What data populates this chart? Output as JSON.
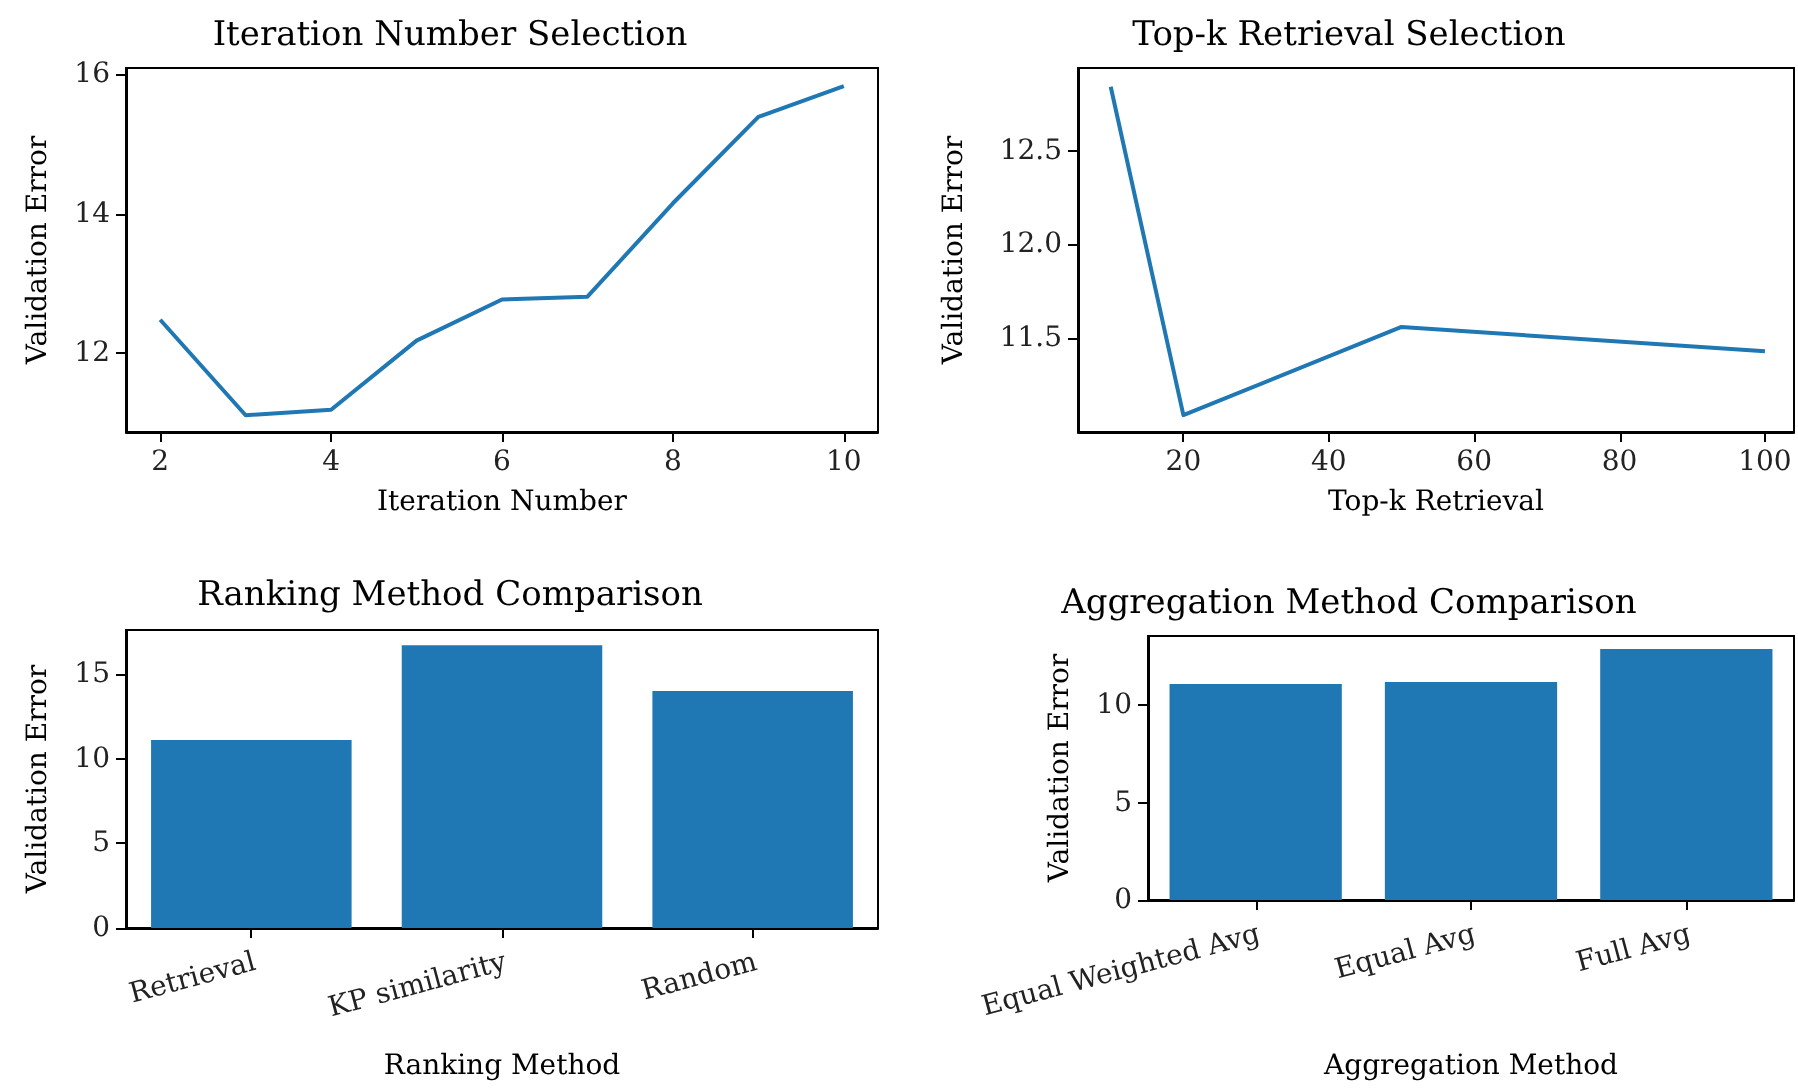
{
  "chart_data": [
    {
      "type": "line",
      "title": "Iteration Number Selection",
      "xlabel": "Iteration Number",
      "ylabel": "Validation Error",
      "x": [
        2,
        3,
        4,
        5,
        6,
        7,
        8,
        9,
        10
      ],
      "series": [
        {
          "color": "#1f77b4",
          "values": [
            12.48,
            11.11,
            11.19,
            12.18,
            12.77,
            12.81,
            14.15,
            15.39,
            15.83
          ]
        }
      ],
      "xlim": [
        1.6,
        10.4
      ],
      "xticks": [
        2,
        4,
        6,
        8,
        10
      ],
      "ylim": [
        10.87,
        16.09
      ],
      "yticks": [
        12,
        14,
        16
      ]
    },
    {
      "type": "line",
      "title": "Top-k Retrieval Selection",
      "xlabel": "Top-k Retrieval",
      "ylabel": "Validation Error",
      "x": [
        10,
        20,
        50,
        100
      ],
      "series": [
        {
          "color": "#1f77b4",
          "values": [
            12.84,
            11.09,
            11.56,
            11.43
          ]
        }
      ],
      "xlim": [
        5.5,
        104
      ],
      "xticks": [
        20,
        40,
        60,
        80,
        100
      ],
      "ylim": [
        11.0,
        12.94
      ],
      "yticks": [
        {
          "value": 11.5,
          "label": "11.5"
        },
        {
          "value": 12,
          "label": "12.0"
        },
        {
          "value": 12.5,
          "label": "12.5"
        }
      ]
    },
    {
      "type": "bar",
      "title": "Ranking Method Comparison",
      "xlabel": "Ranking Method",
      "ylabel": "Validation Error",
      "categories": [
        "Retrieval",
        "KP similarity",
        "Random"
      ],
      "series": [
        {
          "color": "#1f77b4",
          "values": [
            11.1,
            16.7,
            14.0
          ]
        }
      ],
      "ylim": [
        0,
        17.6
      ],
      "yticks": [
        0,
        5,
        10,
        15
      ]
    },
    {
      "type": "bar",
      "title": "Aggregation Method Comparison",
      "xlabel": "Aggregation Method",
      "ylabel": "Validation Error",
      "categories": [
        "Equal Weighted Avg",
        "Equal Avg",
        "Full Avg"
      ],
      "series": [
        {
          "color": "#1f77b4",
          "values": [
            11.1,
            11.2,
            12.9
          ]
        }
      ],
      "ylim": [
        0,
        13.57
      ],
      "yticks": [
        0,
        5,
        10
      ]
    }
  ]
}
